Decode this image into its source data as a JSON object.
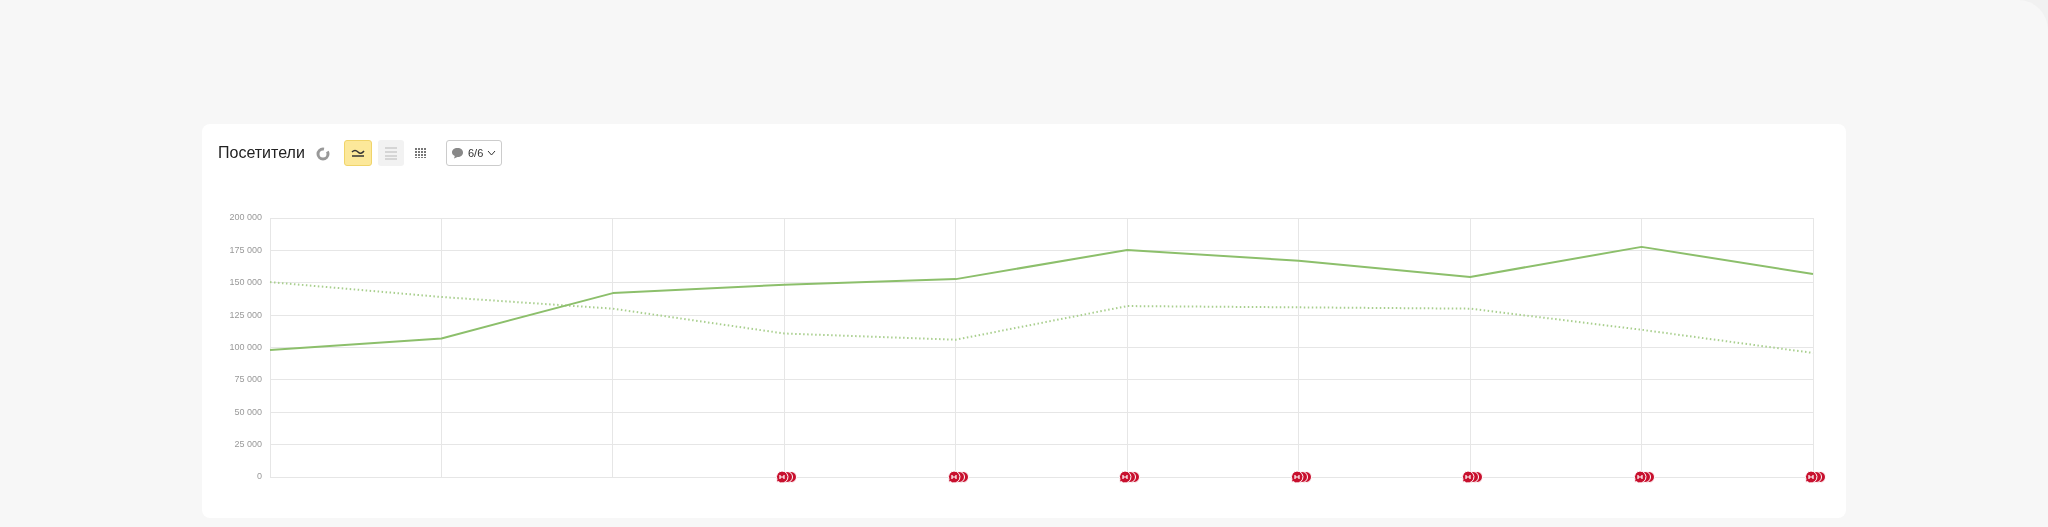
{
  "chart_data": {
    "type": "line",
    "title": "Посетители",
    "annotations": [
      "6/6"
    ],
    "categories": [
      null,
      null,
      null,
      null,
      null,
      null,
      null,
      null,
      null,
      null
    ],
    "series": [
      {
        "color": "#8cbf6b",
        "line_style": "solid",
        "values": [
          98000,
          107000,
          142000,
          148500,
          152800,
          175300,
          167000,
          154500,
          177700,
          156800
        ]
      },
      {
        "color": "#a9cf8e",
        "line_style": "dotted",
        "values": [
          150500,
          139000,
          130000,
          110800,
          106000,
          132000,
          131000,
          130000,
          113700,
          95800
        ]
      }
    ],
    "ylim": [
      0,
      200000
    ],
    "yticks": [
      0,
      {
        "value": 25000,
        "label": "25 000"
      },
      {
        "value": 50000,
        "label": "50 000"
      },
      {
        "value": 75000,
        "label": "75 000"
      },
      {
        "value": 100000,
        "label": "100 000"
      },
      {
        "value": 125000,
        "label": "125 000"
      },
      {
        "value": 150000,
        "label": "150 000"
      },
      {
        "value": 175000,
        "label": "175 000"
      },
      {
        "value": 200000,
        "label": "200 000"
      }
    ],
    "grid": true,
    "legend": false,
    "tick_labels": "y",
    "marker": "none"
  }
}
